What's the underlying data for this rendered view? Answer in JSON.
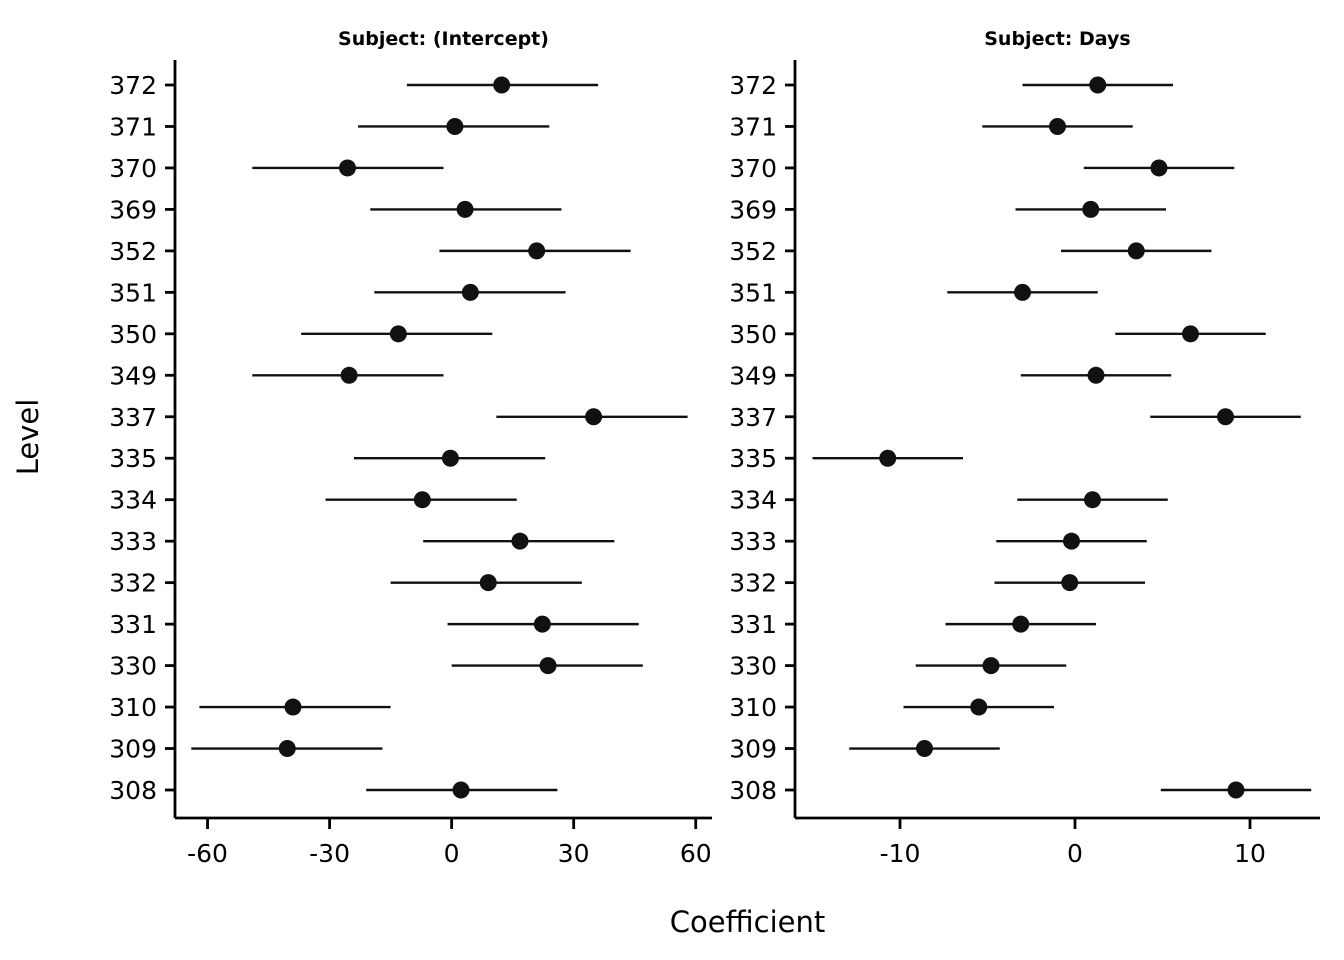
{
  "colors": {
    "background": "#ffffff",
    "point": "#111111",
    "interval_line": "#111111",
    "axis": "#000000",
    "text": "#000000"
  },
  "axis": {
    "xlabel": "Coefficient",
    "ylabel": "Level"
  },
  "chart_data": {
    "type": "scatter",
    "chart_kind": "caterpillar / forest plot of random-effect coefficients with interval bars",
    "xlabel": "Coefficient",
    "ylabel": "Level",
    "categories_top_to_bottom": [
      "372",
      "371",
      "370",
      "369",
      "352",
      "351",
      "350",
      "349",
      "337",
      "335",
      "334",
      "333",
      "332",
      "331",
      "330",
      "310",
      "309",
      "308"
    ],
    "legend": "none",
    "grid": false,
    "panels": [
      {
        "title": "Subject: (Intercept)",
        "xticks": [
          -60,
          -30,
          0,
          30,
          60
        ],
        "xlim": [
          -68,
          64
        ],
        "points": [
          {
            "level": "372",
            "estimate": 12.3,
            "lower": -11.0,
            "upper": 36.0
          },
          {
            "level": "371",
            "estimate": 0.8,
            "lower": -23.0,
            "upper": 24.0
          },
          {
            "level": "370",
            "estimate": -25.6,
            "lower": -49.0,
            "upper": -2.0
          },
          {
            "level": "369",
            "estimate": 3.3,
            "lower": -20.0,
            "upper": 27.0
          },
          {
            "level": "352",
            "estimate": 20.9,
            "lower": -3.0,
            "upper": 44.0
          },
          {
            "level": "351",
            "estimate": 4.6,
            "lower": -19.0,
            "upper": 28.0
          },
          {
            "level": "350",
            "estimate": -13.1,
            "lower": -37.0,
            "upper": 10.0
          },
          {
            "level": "349",
            "estimate": -25.2,
            "lower": -49.0,
            "upper": -2.0
          },
          {
            "level": "337",
            "estimate": 34.9,
            "lower": 11.0,
            "upper": 58.0
          },
          {
            "level": "335",
            "estimate": -0.3,
            "lower": -24.0,
            "upper": 23.0
          },
          {
            "level": "334",
            "estimate": -7.2,
            "lower": -31.0,
            "upper": 16.0
          },
          {
            "level": "333",
            "estimate": 16.8,
            "lower": -7.0,
            "upper": 40.0
          },
          {
            "level": "332",
            "estimate": 9.0,
            "lower": -15.0,
            "upper": 32.0
          },
          {
            "level": "331",
            "estimate": 22.3,
            "lower": -1.0,
            "upper": 46.0
          },
          {
            "level": "330",
            "estimate": 23.7,
            "lower": 0.0,
            "upper": 47.0
          },
          {
            "level": "310",
            "estimate": -39.0,
            "lower": -62.0,
            "upper": -15.0
          },
          {
            "level": "309",
            "estimate": -40.4,
            "lower": -64.0,
            "upper": -17.0
          },
          {
            "level": "308",
            "estimate": 2.3,
            "lower": -21.0,
            "upper": 26.0
          }
        ]
      },
      {
        "title": "Subject: Days",
        "xticks": [
          -10,
          0,
          10
        ],
        "xlim": [
          -16,
          14
        ],
        "points": [
          {
            "level": "372",
            "estimate": 1.3,
            "lower": -3.0,
            "upper": 5.6
          },
          {
            "level": "371",
            "estimate": -1.0,
            "lower": -5.3,
            "upper": 3.3
          },
          {
            "level": "370",
            "estimate": 4.8,
            "lower": 0.5,
            "upper": 9.1
          },
          {
            "level": "369",
            "estimate": 0.9,
            "lower": -3.4,
            "upper": 5.2
          },
          {
            "level": "352",
            "estimate": 3.5,
            "lower": -0.8,
            "upper": 7.8
          },
          {
            "level": "351",
            "estimate": -3.0,
            "lower": -7.3,
            "upper": 1.3
          },
          {
            "level": "350",
            "estimate": 6.6,
            "lower": 2.3,
            "upper": 10.9
          },
          {
            "level": "349",
            "estimate": 1.2,
            "lower": -3.1,
            "upper": 5.5
          },
          {
            "level": "337",
            "estimate": 8.6,
            "lower": 4.3,
            "upper": 12.9
          },
          {
            "level": "335",
            "estimate": -10.7,
            "lower": -15.0,
            "upper": -6.4
          },
          {
            "level": "334",
            "estimate": 1.0,
            "lower": -3.3,
            "upper": 5.3
          },
          {
            "level": "333",
            "estimate": -0.2,
            "lower": -4.5,
            "upper": 4.1
          },
          {
            "level": "332",
            "estimate": -0.3,
            "lower": -4.6,
            "upper": 4.0
          },
          {
            "level": "331",
            "estimate": -3.1,
            "lower": -7.4,
            "upper": 1.2
          },
          {
            "level": "330",
            "estimate": -4.8,
            "lower": -9.1,
            "upper": -0.5
          },
          {
            "level": "310",
            "estimate": -5.5,
            "lower": -9.8,
            "upper": -1.2
          },
          {
            "level": "309",
            "estimate": -8.6,
            "lower": -12.9,
            "upper": -4.3
          },
          {
            "level": "308",
            "estimate": 9.2,
            "lower": 4.9,
            "upper": 13.5
          }
        ]
      }
    ]
  }
}
